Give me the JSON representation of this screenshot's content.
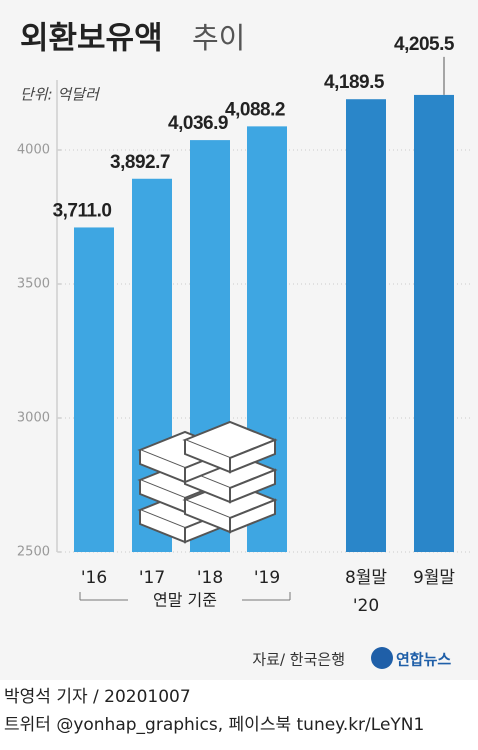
{
  "chart_data": {
    "type": "bar",
    "title": "외환보유액",
    "subtitle": "추이",
    "unit": "단위: 억달러",
    "categories": [
      "'16",
      "'17",
      "'18",
      "'19",
      "8월말",
      "9월말"
    ],
    "values": [
      3711.0,
      3892.7,
      4036.9,
      4088.2,
      4189.5,
      4205.5
    ],
    "value_labels": [
      "3,711.0",
      "3,892.7",
      "4,036.9",
      "4,088.2",
      "4,189.5",
      "4,205.5"
    ],
    "colors": [
      "#3ea6e2",
      "#3ea6e2",
      "#3ea6e2",
      "#3ea6e2",
      "#2a86c9",
      "#2a86c9"
    ],
    "groups": [
      "연말 기준",
      "'20"
    ],
    "ylim": [
      2500,
      4250
    ],
    "yticks": [
      2500,
      3000,
      3500,
      4000
    ],
    "grid": true,
    "source": "자료/ 한국은행",
    "agency": "연합뉴스"
  },
  "footer": {
    "byline": "박영석 기자 / 20201007",
    "social": "트위터 @yonhap_graphics, 페이스북 tuney.kr/LeYN1"
  }
}
